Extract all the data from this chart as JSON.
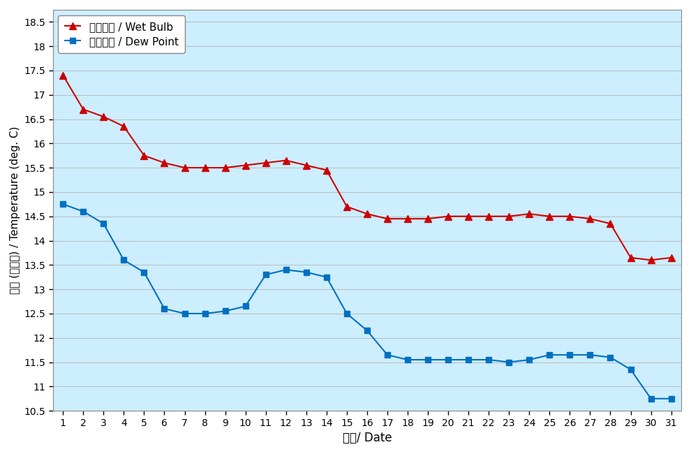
{
  "days": [
    1,
    2,
    3,
    4,
    5,
    6,
    7,
    8,
    9,
    10,
    11,
    12,
    13,
    14,
    15,
    16,
    17,
    18,
    19,
    20,
    21,
    22,
    23,
    24,
    25,
    26,
    27,
    28,
    29,
    30,
    31
  ],
  "wet_bulb": [
    17.4,
    16.7,
    16.55,
    16.35,
    15.75,
    15.6,
    15.5,
    15.5,
    15.5,
    15.55,
    15.6,
    15.65,
    15.55,
    15.45,
    14.7,
    14.55,
    14.45,
    14.45,
    14.45,
    14.5,
    14.5,
    14.5,
    14.5,
    14.55,
    14.5,
    14.5,
    14.45,
    14.35,
    13.65,
    13.6,
    13.65
  ],
  "dew_point": [
    14.75,
    14.6,
    14.35,
    13.6,
    13.35,
    12.6,
    12.5,
    12.5,
    12.55,
    12.65,
    13.3,
    13.4,
    13.35,
    13.25,
    12.5,
    12.15,
    11.65,
    11.55,
    11.55,
    11.55,
    11.55,
    11.55,
    11.5,
    11.55,
    11.65,
    11.65,
    11.65,
    11.6,
    11.35,
    10.75,
    10.75
  ],
  "ylim": [
    10.5,
    18.75
  ],
  "yticks": [
    10.5,
    11.0,
    11.5,
    12.0,
    12.5,
    13.0,
    13.5,
    14.0,
    14.5,
    15.0,
    15.5,
    16.0,
    16.5,
    17.0,
    17.5,
    18.0,
    18.5
  ],
  "xlabel": "日期/ Date",
  "ylabel": "溫度 (攝氏度) / Temperature (deg. C)",
  "wet_bulb_label": "濕球溫度 / Wet Bulb",
  "dew_point_label": "露點溫度 / Dew Point",
  "wet_bulb_color": "#cc0000",
  "dew_point_color": "#0070c0",
  "bg_color": "#cceeff",
  "legend_bg": "#ffffff",
  "grid_color": "#bbbbbb"
}
